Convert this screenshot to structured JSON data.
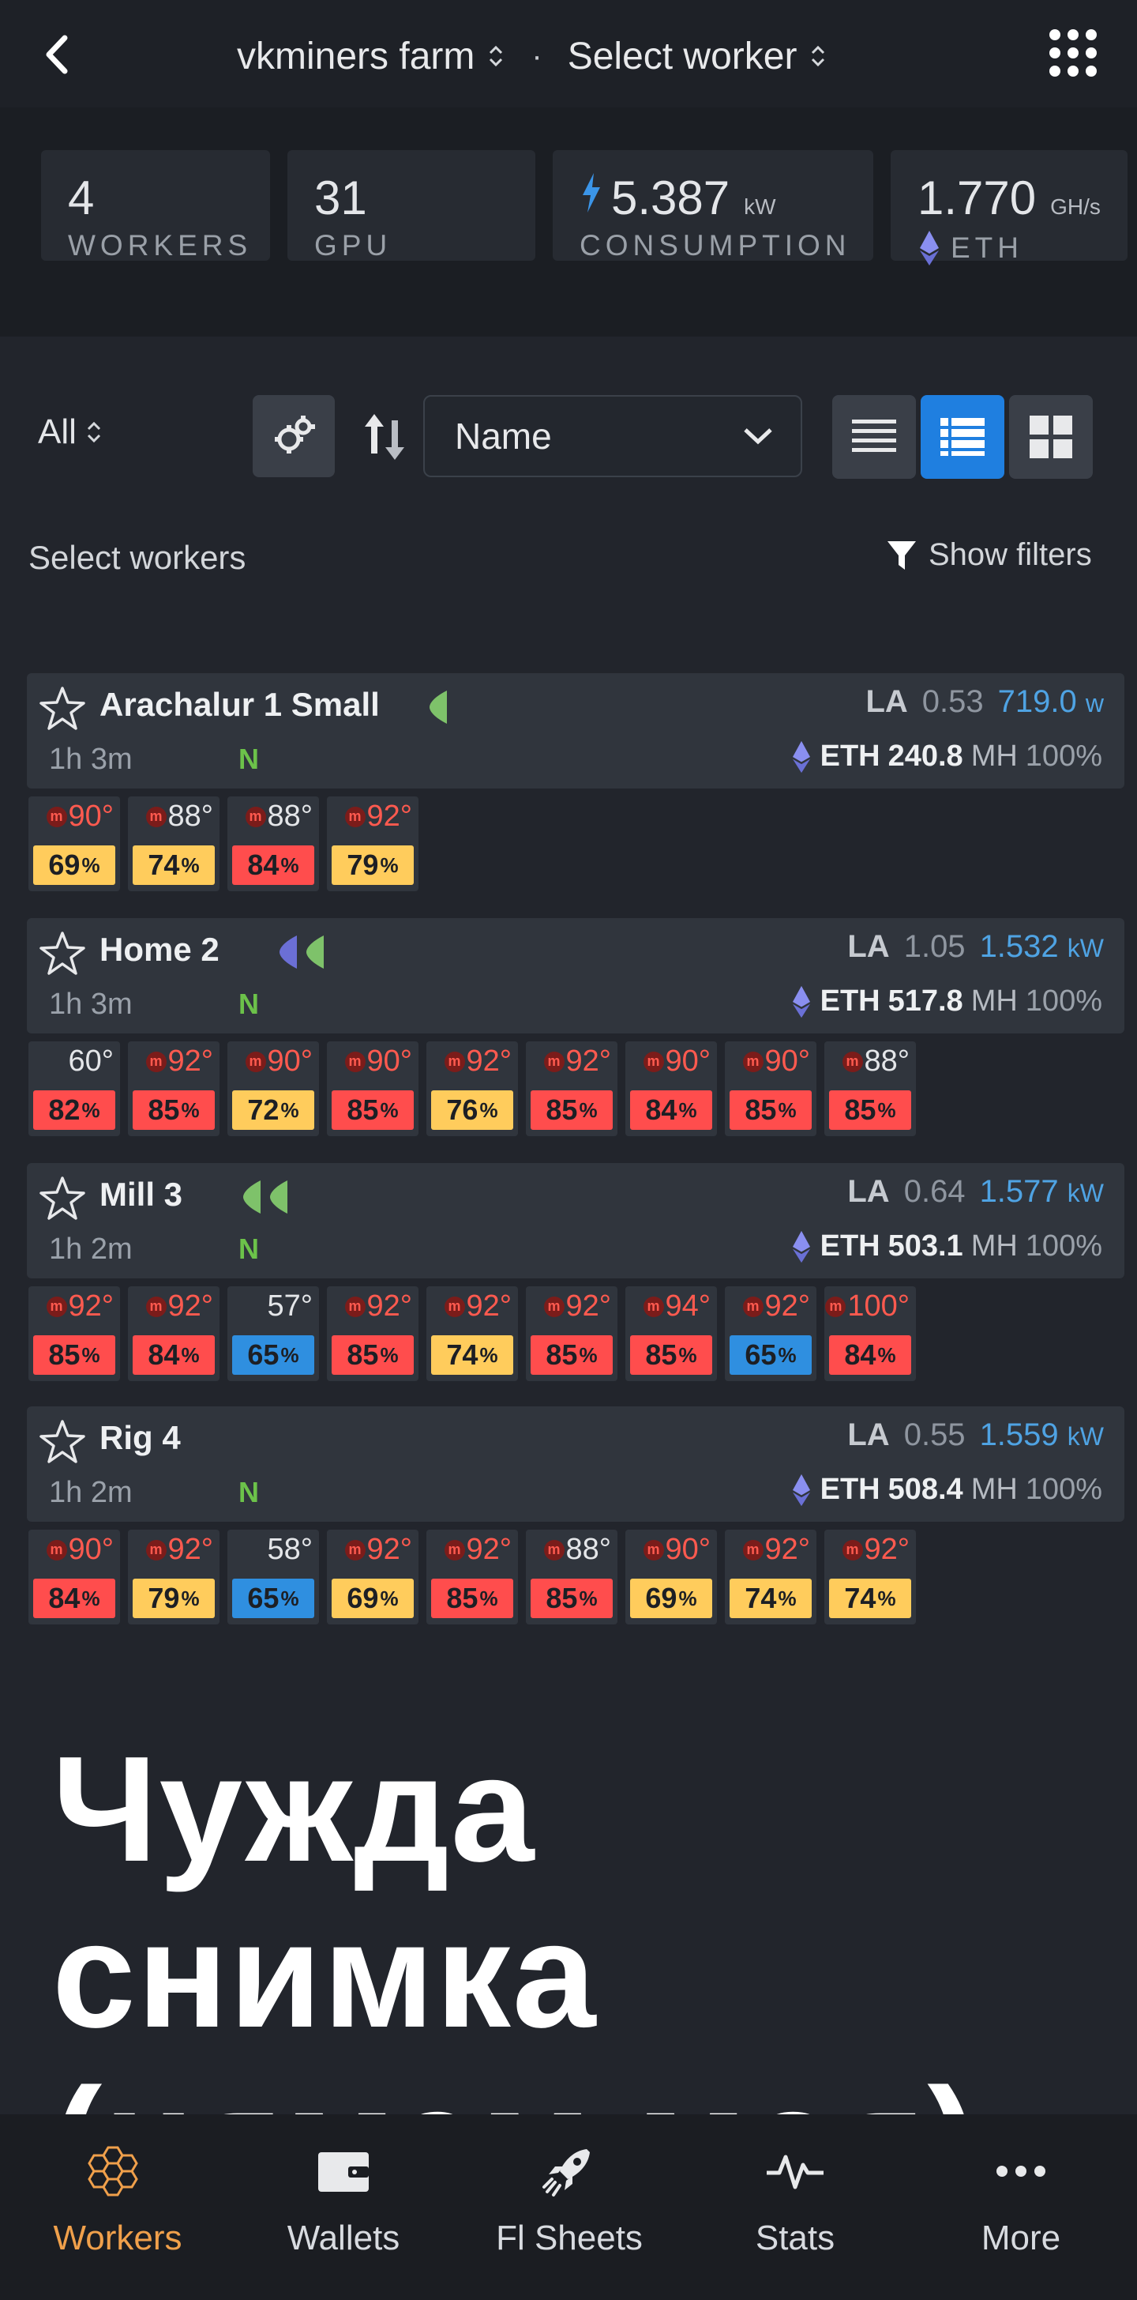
{
  "header": {
    "farm": "vkminers farm",
    "separator": "·",
    "worker_select": "Select worker"
  },
  "stats": [
    {
      "value": "4",
      "unit": "",
      "label": "WORKERS"
    },
    {
      "value": "31",
      "unit": "",
      "label": "GPU"
    },
    {
      "value": "5.387",
      "unit": "kW",
      "label": "CONSUMPTION"
    },
    {
      "value": "1.770",
      "unit": "GH/s",
      "label": "ETH"
    }
  ],
  "toolbar": {
    "filter_all": "All",
    "sort_field": "Name",
    "select_workers": "Select workers",
    "show_filters": "Show filters"
  },
  "colors": {
    "hot": "#ff5a4f",
    "fan_red": "#ff4d4d",
    "fan_yellow": "#ffcc5c",
    "fan_blue": "#2f8fe0",
    "accent": "#f0a04b",
    "link_blue": "#4fa3e3",
    "online": "#6cc24a"
  },
  "workers": [
    {
      "name": "Arachalur 1 Small",
      "uptime": "1h 3m",
      "badge": "N",
      "la": "0.53",
      "power": "719.0",
      "power_unit": "w",
      "coin": "ETH",
      "hashrate": "240.8",
      "hash_unit": "MH",
      "hash_pct": "100%",
      "gpus": [
        {
          "temp": "90°",
          "hot": true,
          "fan": "69",
          "color": "yellow"
        },
        {
          "temp": "88°",
          "hot": false,
          "fan": "74",
          "color": "yellow"
        },
        {
          "temp": "88°",
          "hot": false,
          "fan": "84",
          "color": "red"
        },
        {
          "temp": "92°",
          "hot": true,
          "fan": "79",
          "color": "yellow"
        }
      ]
    },
    {
      "name": "Home 2",
      "uptime": "1h 3m",
      "badge": "N",
      "la": "1.05",
      "power": "1.532",
      "power_unit": "kW",
      "coin": "ETH",
      "hashrate": "517.8",
      "hash_unit": "MH",
      "hash_pct": "100%",
      "gpus": [
        {
          "temp": "60°",
          "hot": false,
          "plain": true,
          "fan": "82",
          "color": "red"
        },
        {
          "temp": "92°",
          "hot": true,
          "fan": "85",
          "color": "red"
        },
        {
          "temp": "90°",
          "hot": true,
          "fan": "72",
          "color": "yellow"
        },
        {
          "temp": "90°",
          "hot": true,
          "fan": "85",
          "color": "red"
        },
        {
          "temp": "92°",
          "hot": true,
          "fan": "76",
          "color": "yellow"
        },
        {
          "temp": "92°",
          "hot": true,
          "fan": "85",
          "color": "red"
        },
        {
          "temp": "90°",
          "hot": true,
          "fan": "84",
          "color": "red"
        },
        {
          "temp": "90°",
          "hot": true,
          "fan": "85",
          "color": "red"
        },
        {
          "temp": "88°",
          "hot": false,
          "fan": "85",
          "color": "red"
        }
      ]
    },
    {
      "name": "Mill 3",
      "uptime": "1h 2m",
      "badge": "N",
      "la": "0.64",
      "power": "1.577",
      "power_unit": "kW",
      "coin": "ETH",
      "hashrate": "503.1",
      "hash_unit": "MH",
      "hash_pct": "100%",
      "gpus": [
        {
          "temp": "92°",
          "hot": true,
          "fan": "85",
          "color": "red"
        },
        {
          "temp": "92°",
          "hot": true,
          "fan": "84",
          "color": "red"
        },
        {
          "temp": "57°",
          "hot": false,
          "plain": true,
          "fan": "65",
          "color": "blue"
        },
        {
          "temp": "92°",
          "hot": true,
          "fan": "85",
          "color": "red"
        },
        {
          "temp": "92°",
          "hot": true,
          "fan": "74",
          "color": "yellow"
        },
        {
          "temp": "92°",
          "hot": true,
          "fan": "85",
          "color": "red"
        },
        {
          "temp": "94°",
          "hot": true,
          "fan": "85",
          "color": "red"
        },
        {
          "temp": "92°",
          "hot": true,
          "fan": "65",
          "color": "blue"
        },
        {
          "temp": "100°",
          "hot": true,
          "fan": "84",
          "color": "red"
        }
      ]
    },
    {
      "name": "Rig 4",
      "uptime": "1h 2m",
      "badge": "N",
      "la": "0.55",
      "power": "1.559",
      "power_unit": "kW",
      "coin": "ETH",
      "hashrate": "508.4",
      "hash_unit": "MH",
      "hash_pct": "100%",
      "gpus": [
        {
          "temp": "90°",
          "hot": true,
          "fan": "84",
          "color": "red"
        },
        {
          "temp": "92°",
          "hot": true,
          "fan": "79",
          "color": "yellow"
        },
        {
          "temp": "58°",
          "hot": false,
          "plain": true,
          "fan": "65",
          "color": "blue"
        },
        {
          "temp": "92°",
          "hot": true,
          "fan": "69",
          "color": "yellow"
        },
        {
          "temp": "92°",
          "hot": true,
          "fan": "85",
          "color": "red"
        },
        {
          "temp": "88°",
          "hot": false,
          "fan": "85",
          "color": "red"
        },
        {
          "temp": "90°",
          "hot": true,
          "fan": "69",
          "color": "yellow"
        },
        {
          "temp": "92°",
          "hot": true,
          "fan": "74",
          "color": "yellow"
        },
        {
          "temp": "92°",
          "hot": true,
          "fan": "74",
          "color": "yellow"
        }
      ]
    }
  ],
  "overlay_text": [
    "Чужда снимка",
    "(нямам моя)"
  ],
  "nav": [
    {
      "label": "Workers",
      "icon": "honeycomb-icon",
      "active": true
    },
    {
      "label": "Wallets",
      "icon": "wallet-icon",
      "active": false
    },
    {
      "label": "Fl Sheets",
      "icon": "rocket-icon",
      "active": false
    },
    {
      "label": "Stats",
      "icon": "pulse-icon",
      "active": false
    },
    {
      "label": "More",
      "icon": "more-dots-icon",
      "active": false
    }
  ]
}
